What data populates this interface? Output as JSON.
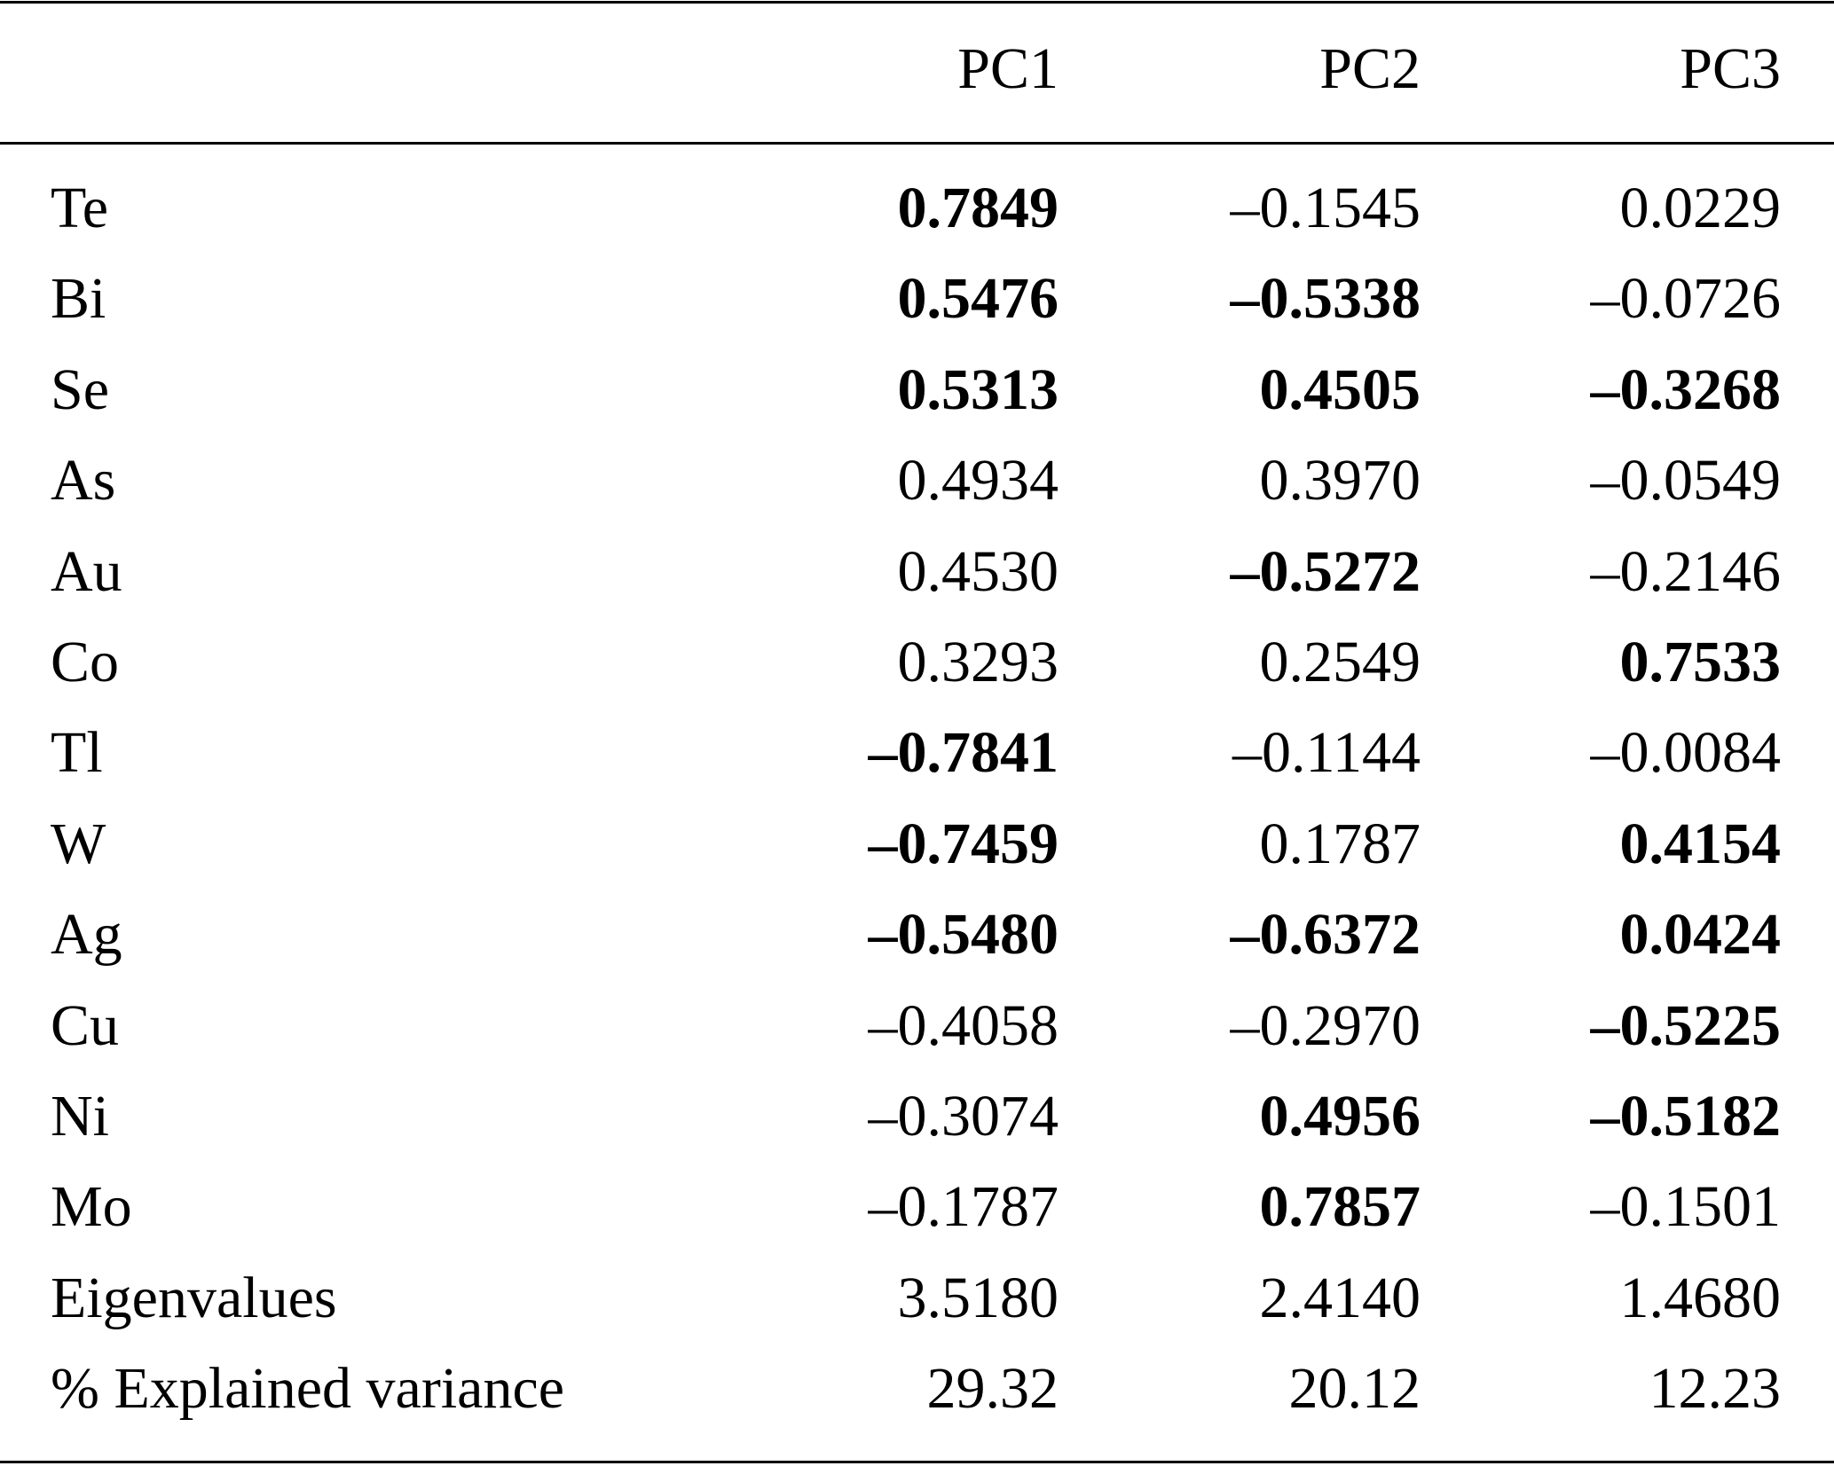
{
  "table": {
    "columns": [
      "PC1",
      "PC2",
      "PC3"
    ],
    "rows": [
      {
        "label": "Te",
        "cells": [
          "0.7849",
          "–0.1545",
          "0.0229"
        ],
        "bold": [
          true,
          false,
          false
        ]
      },
      {
        "label": "Bi",
        "cells": [
          "0.5476",
          "–0.5338",
          "–0.0726"
        ],
        "bold": [
          true,
          true,
          false
        ]
      },
      {
        "label": "Se",
        "cells": [
          "0.5313",
          "0.4505",
          "–0.3268"
        ],
        "bold": [
          true,
          true,
          true
        ]
      },
      {
        "label": "As",
        "cells": [
          "0.4934",
          "0.3970",
          "–0.0549"
        ],
        "bold": [
          false,
          false,
          false
        ]
      },
      {
        "label": "Au",
        "cells": [
          "0.4530",
          "–0.5272",
          "–0.2146"
        ],
        "bold": [
          false,
          true,
          false
        ]
      },
      {
        "label": "Co",
        "cells": [
          "0.3293",
          "0.2549",
          "0.7533"
        ],
        "bold": [
          false,
          false,
          true
        ]
      },
      {
        "label": "Tl",
        "cells": [
          "–0.7841",
          "–0.1144",
          "–0.0084"
        ],
        "bold": [
          true,
          false,
          false
        ]
      },
      {
        "label": "W",
        "cells": [
          "–0.7459",
          "0.1787",
          "0.4154"
        ],
        "bold": [
          true,
          false,
          true
        ]
      },
      {
        "label": "Ag",
        "cells": [
          "–0.5480",
          "–0.6372",
          "0.0424"
        ],
        "bold": [
          true,
          true,
          true
        ]
      },
      {
        "label": "Cu",
        "cells": [
          "–0.4058",
          "–0.2970",
          "–0.5225"
        ],
        "bold": [
          false,
          false,
          true
        ]
      },
      {
        "label": "Ni",
        "cells": [
          "–0.3074",
          "0.4956",
          "–0.5182"
        ],
        "bold": [
          false,
          true,
          true
        ]
      },
      {
        "label": "Mo",
        "cells": [
          "–0.1787",
          "0.7857",
          "–0.1501"
        ],
        "bold": [
          false,
          true,
          false
        ]
      },
      {
        "label": "Eigenvalues",
        "cells": [
          "3.5180",
          "2.4140",
          "1.4680"
        ],
        "bold": [
          false,
          false,
          false
        ]
      },
      {
        "label": "% Explained variance",
        "cells": [
          "29.32",
          "20.12",
          "12.23"
        ],
        "bold": [
          false,
          false,
          false
        ]
      }
    ]
  }
}
